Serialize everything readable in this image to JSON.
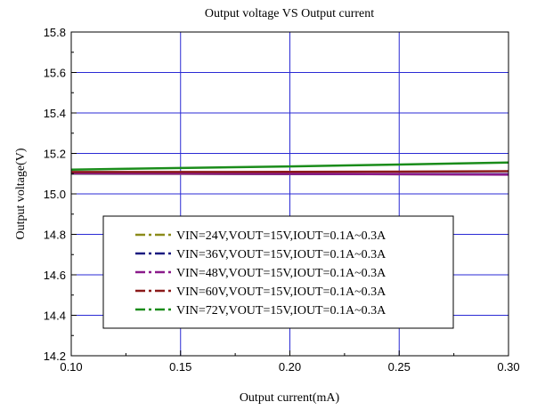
{
  "chart_data": {
    "type": "line",
    "title": "Output voltage VS Output current",
    "xlabel": "Output current(mA)",
    "ylabel": "Output voltage(V)",
    "xlim": [
      0.1,
      0.3
    ],
    "ylim": [
      14.2,
      15.8
    ],
    "x_ticks": [
      "0.10",
      "0.15",
      "0.20",
      "0.25",
      "0.30"
    ],
    "y_ticks": [
      "14.2",
      "14.4",
      "14.6",
      "14.8",
      "15.0",
      "15.2",
      "15.4",
      "15.6",
      "15.8"
    ],
    "grid": true,
    "legend_position": "lower-center",
    "x": [
      0.1,
      0.15,
      0.2,
      0.25,
      0.3
    ],
    "series": [
      {
        "name": "VIN=24V,VOUT=15V,IOUT=0.1A~0.3A",
        "color": "#8b8b1a",
        "values": [
          15.1,
          15.099,
          15.098,
          15.097,
          15.096
        ]
      },
      {
        "name": "VIN=36V,VOUT=15V,IOUT=0.1A~0.3A",
        "color": "#1a1a80",
        "values": [
          15.101,
          15.1,
          15.099,
          15.098,
          15.097
        ]
      },
      {
        "name": "VIN=48V,VOUT=15V,IOUT=0.1A~0.3A",
        "color": "#8b1a8b",
        "values": [
          15.102,
          15.1,
          15.099,
          15.097,
          15.095
        ]
      },
      {
        "name": "VIN=60V,VOUT=15V,IOUT=0.1A~0.3A",
        "color": "#8b1a1a",
        "values": [
          15.108,
          15.108,
          15.109,
          15.11,
          15.112
        ]
      },
      {
        "name": "VIN=72V,VOUT=15V,IOUT=0.1A~0.3A",
        "color": "#1a8c1a",
        "values": [
          15.12,
          15.128,
          15.136,
          15.145,
          15.155
        ]
      }
    ]
  }
}
